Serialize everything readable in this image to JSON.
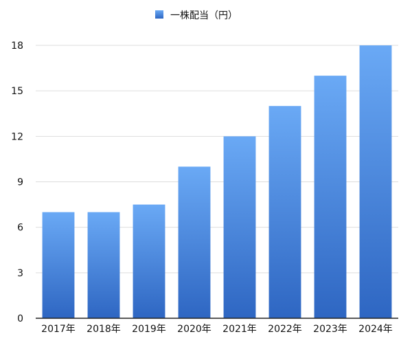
{
  "chart_data": {
    "type": "bar",
    "categories": [
      "2017年",
      "2018年",
      "2019年",
      "2020年",
      "2021年",
      "2022年",
      "2023年",
      "2024年"
    ],
    "series": [
      {
        "name": "一株配当（円）",
        "values": [
          7,
          7,
          7.5,
          10,
          12,
          14,
          16,
          18
        ]
      }
    ],
    "yticks": [
      0,
      3,
      6,
      9,
      12,
      15,
      18
    ],
    "ylim": [
      0,
      18
    ],
    "grid": true,
    "legend": "top-center",
    "colors": {
      "bar_top": "#6aa9f5",
      "bar_bottom": "#2e66c2",
      "grid": "#dddddd",
      "axis": "#222222"
    }
  }
}
